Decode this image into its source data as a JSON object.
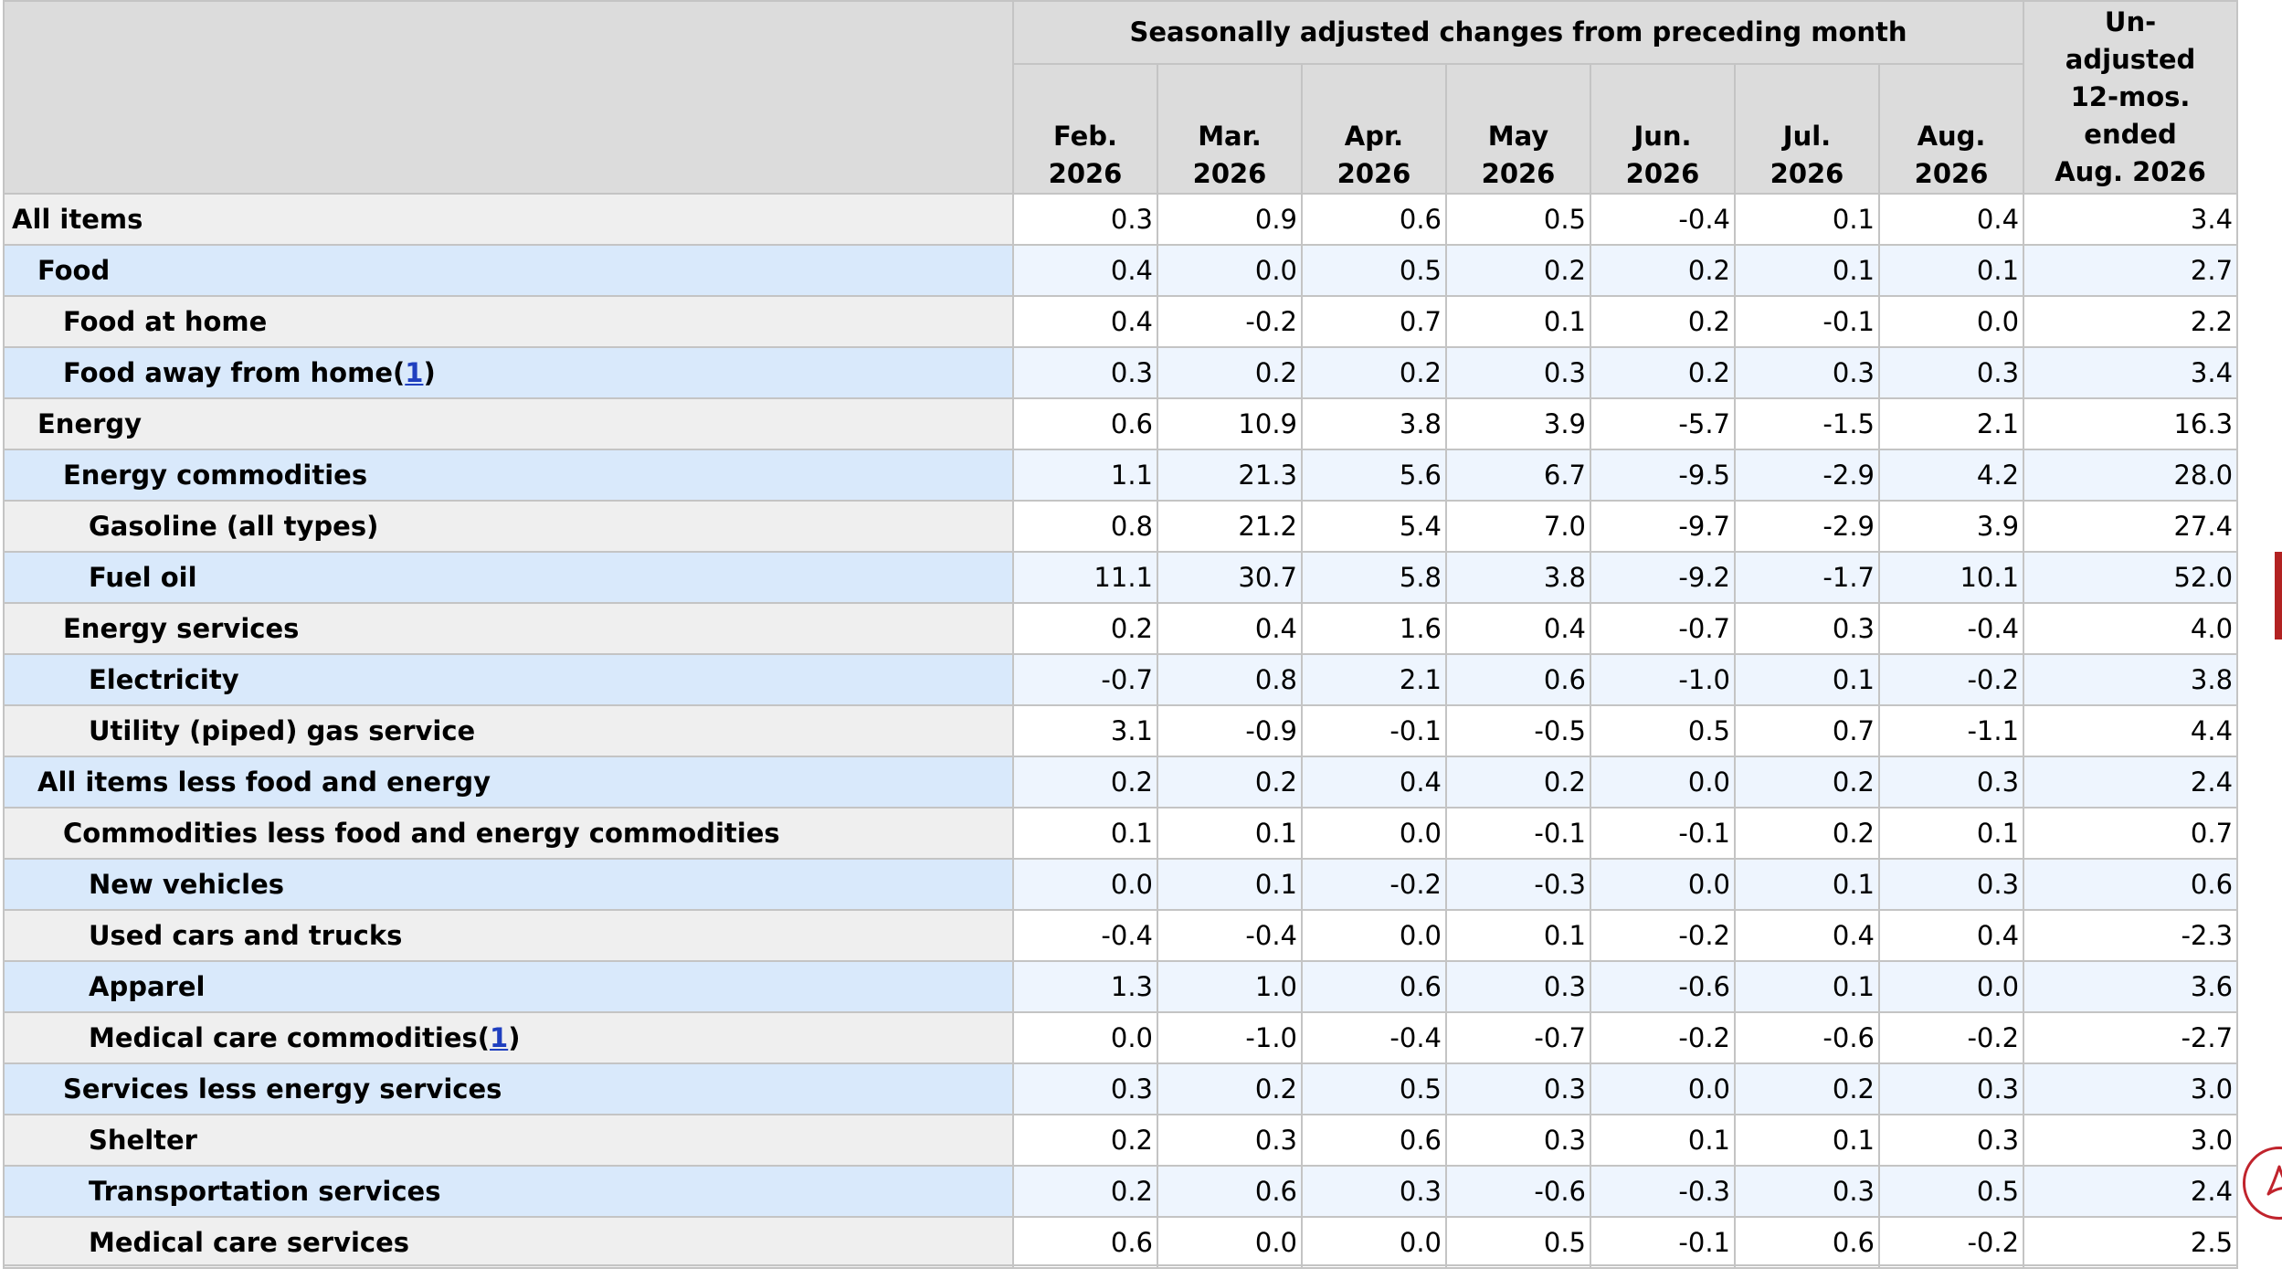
{
  "header": {
    "group_label": "Seasonally adjusted changes from preceding month",
    "columns": [
      {
        "line1": "Feb.",
        "line2": "2026"
      },
      {
        "line1": "Mar.",
        "line2": "2026"
      },
      {
        "line1": "Apr.",
        "line2": "2026"
      },
      {
        "line1": "May",
        "line2": "2026"
      },
      {
        "line1": "Jun.",
        "line2": "2026"
      },
      {
        "line1": "Jul.",
        "line2": "2026"
      },
      {
        "line1": "Aug.",
        "line2": "2026"
      }
    ],
    "unadjusted": {
      "line1": "Un-",
      "line2": "adjusted",
      "line3": "12-mos.",
      "line4": "ended",
      "line5": "Aug. 2026"
    }
  },
  "rows": [
    {
      "label": "All items",
      "indent": 0,
      "footnote": "",
      "values": [
        "0.3",
        "0.9",
        "0.6",
        "0.5",
        "-0.4",
        "0.1",
        "0.4",
        "3.4"
      ]
    },
    {
      "label": "Food",
      "indent": 1,
      "footnote": "",
      "values": [
        "0.4",
        "0.0",
        "0.5",
        "0.2",
        "0.2",
        "0.1",
        "0.1",
        "2.7"
      ]
    },
    {
      "label": "Food at home",
      "indent": 2,
      "footnote": "",
      "values": [
        "0.4",
        "-0.2",
        "0.7",
        "0.1",
        "0.2",
        "-0.1",
        "0.0",
        "2.2"
      ]
    },
    {
      "label": "Food away from home",
      "indent": 2,
      "footnote": "1",
      "values": [
        "0.3",
        "0.2",
        "0.2",
        "0.3",
        "0.2",
        "0.3",
        "0.3",
        "3.4"
      ]
    },
    {
      "label": "Energy",
      "indent": 1,
      "footnote": "",
      "values": [
        "0.6",
        "10.9",
        "3.8",
        "3.9",
        "-5.7",
        "-1.5",
        "2.1",
        "16.3"
      ]
    },
    {
      "label": "Energy commodities",
      "indent": 2,
      "footnote": "",
      "values": [
        "1.1",
        "21.3",
        "5.6",
        "6.7",
        "-9.5",
        "-2.9",
        "4.2",
        "28.0"
      ]
    },
    {
      "label": "Gasoline (all types)",
      "indent": 3,
      "footnote": "",
      "values": [
        "0.8",
        "21.2",
        "5.4",
        "7.0",
        "-9.7",
        "-2.9",
        "3.9",
        "27.4"
      ]
    },
    {
      "label": "Fuel oil",
      "indent": 3,
      "footnote": "",
      "values": [
        "11.1",
        "30.7",
        "5.8",
        "3.8",
        "-9.2",
        "-1.7",
        "10.1",
        "52.0"
      ]
    },
    {
      "label": "Energy services",
      "indent": 2,
      "footnote": "",
      "values": [
        "0.2",
        "0.4",
        "1.6",
        "0.4",
        "-0.7",
        "0.3",
        "-0.4",
        "4.0"
      ]
    },
    {
      "label": "Electricity",
      "indent": 3,
      "footnote": "",
      "values": [
        "-0.7",
        "0.8",
        "2.1",
        "0.6",
        "-1.0",
        "0.1",
        "-0.2",
        "3.8"
      ]
    },
    {
      "label": "Utility (piped) gas service",
      "indent": 3,
      "footnote": "",
      "values": [
        "3.1",
        "-0.9",
        "-0.1",
        "-0.5",
        "0.5",
        "0.7",
        "-1.1",
        "4.4"
      ]
    },
    {
      "label": "All items less food and energy",
      "indent": 1,
      "footnote": "",
      "values": [
        "0.2",
        "0.2",
        "0.4",
        "0.2",
        "0.0",
        "0.2",
        "0.3",
        "2.4"
      ]
    },
    {
      "label": "Commodities less food and energy commodities",
      "indent": 2,
      "footnote": "",
      "values": [
        "0.1",
        "0.1",
        "0.0",
        "-0.1",
        "-0.1",
        "0.2",
        "0.1",
        "0.7"
      ]
    },
    {
      "label": "New vehicles",
      "indent": 3,
      "footnote": "",
      "values": [
        "0.0",
        "0.1",
        "-0.2",
        "-0.3",
        "0.0",
        "0.1",
        "0.3",
        "0.6"
      ]
    },
    {
      "label": "Used cars and trucks",
      "indent": 3,
      "footnote": "",
      "values": [
        "-0.4",
        "-0.4",
        "0.0",
        "0.1",
        "-0.2",
        "0.4",
        "0.4",
        "-2.3"
      ]
    },
    {
      "label": "Apparel",
      "indent": 3,
      "footnote": "",
      "values": [
        "1.3",
        "1.0",
        "0.6",
        "0.3",
        "-0.6",
        "0.1",
        "0.0",
        "3.6"
      ]
    },
    {
      "label": "Medical care commodities",
      "indent": 3,
      "footnote": "1",
      "values": [
        "0.0",
        "-1.0",
        "-0.4",
        "-0.7",
        "-0.2",
        "-0.6",
        "-0.2",
        "-2.7"
      ]
    },
    {
      "label": "Services less energy services",
      "indent": 2,
      "footnote": "",
      "values": [
        "0.3",
        "0.2",
        "0.5",
        "0.3",
        "0.0",
        "0.2",
        "0.3",
        "3.0"
      ]
    },
    {
      "label": "Shelter",
      "indent": 3,
      "footnote": "",
      "values": [
        "0.2",
        "0.3",
        "0.6",
        "0.3",
        "0.1",
        "0.1",
        "0.3",
        "3.0"
      ]
    },
    {
      "label": "Transportation services",
      "indent": 3,
      "footnote": "",
      "values": [
        "0.2",
        "0.6",
        "0.3",
        "-0.6",
        "-0.3",
        "0.3",
        "0.5",
        "2.4"
      ]
    },
    {
      "label": "Medical care services",
      "indent": 3,
      "footnote": "",
      "values": [
        "0.6",
        "0.0",
        "0.0",
        "0.5",
        "-0.1",
        "0.6",
        "-0.2",
        "2.5"
      ]
    }
  ],
  "colors": {
    "header_bg": "#dcdcdc",
    "stub_bg": "#efefef",
    "stub_bg_alt": "#d9e9fb",
    "cell_bg_alt": "#eef5fe",
    "border": "#c4c4c4",
    "link": "#1f3fbf",
    "accent_red": "#b22222"
  },
  "icons": {
    "pdf": "pdf-icon"
  }
}
